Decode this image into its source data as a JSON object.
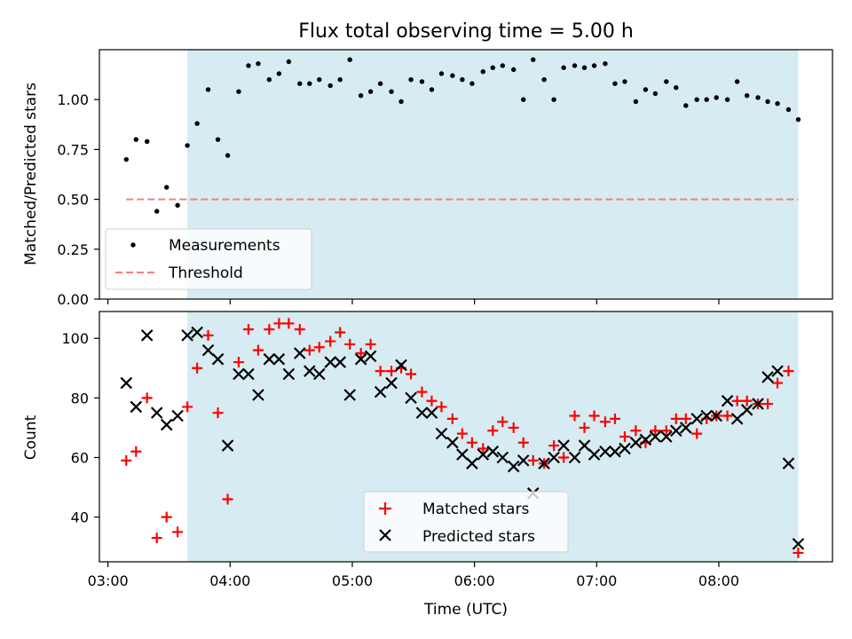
{
  "figure": {
    "title": "Flux total observing time = 5.00 h"
  },
  "chart_data": [
    {
      "type": "scatter",
      "ylabel": "Matched/Predicted stars",
      "ylim": [
        0,
        1.25
      ],
      "xlim_hours": [
        2.93,
        8.93
      ],
      "yticks": [
        "0.00",
        "0.25",
        "0.50",
        "0.75",
        "1.00"
      ],
      "grid": false,
      "shaded_region_hours": [
        3.65,
        8.65
      ],
      "threshold": {
        "name": "Threshold",
        "value": 0.5,
        "from_hours": 3.15,
        "to_hours": 8.65
      },
      "legend": {
        "placement": "lower-left",
        "entries": [
          "Measurements",
          "Threshold"
        ]
      },
      "series": [
        {
          "name": "Measurements",
          "x_hours": [
            3.15,
            3.23,
            3.32,
            3.4,
            3.48,
            3.57,
            3.65,
            3.73,
            3.82,
            3.9,
            3.98,
            4.07,
            4.15,
            4.23,
            4.32,
            4.4,
            4.48,
            4.57,
            4.65,
            4.73,
            4.82,
            4.9,
            4.98,
            5.07,
            5.15,
            5.23,
            5.32,
            5.4,
            5.48,
            5.57,
            5.65,
            5.73,
            5.82,
            5.9,
            5.98,
            6.07,
            6.15,
            6.23,
            6.32,
            6.4,
            6.48,
            6.57,
            6.65,
            6.73,
            6.82,
            6.9,
            6.98,
            7.07,
            7.15,
            7.23,
            7.32,
            7.4,
            7.48,
            7.57,
            7.65,
            7.73,
            7.82,
            7.9,
            7.98,
            8.07,
            8.15,
            8.23,
            8.32,
            8.4,
            8.48,
            8.57,
            8.65
          ],
          "y": [
            0.7,
            0.8,
            0.79,
            0.44,
            0.56,
            0.47,
            0.77,
            0.88,
            1.05,
            0.8,
            0.72,
            1.04,
            1.17,
            1.18,
            1.1,
            1.13,
            1.19,
            1.08,
            1.08,
            1.1,
            1.07,
            1.1,
            1.2,
            1.02,
            1.04,
            1.08,
            1.04,
            0.99,
            1.1,
            1.09,
            1.05,
            1.13,
            1.12,
            1.1,
            1.08,
            1.14,
            1.16,
            1.17,
            1.15,
            1.0,
            1.2,
            1.1,
            1.0,
            1.16,
            1.17,
            1.16,
            1.17,
            1.18,
            1.08,
            1.09,
            0.99,
            1.05,
            1.03,
            1.09,
            1.06,
            0.97,
            1.0,
            1.0,
            1.01,
            1.0,
            1.09,
            1.02,
            1.01,
            0.99,
            0.98,
            0.95,
            0.9
          ]
        }
      ]
    },
    {
      "type": "scatter",
      "xlabel": "Time (UTC)",
      "ylabel": "Count",
      "ylim": [
        25,
        109
      ],
      "xlim_hours": [
        2.93,
        8.93
      ],
      "yticks": [
        "40",
        "60",
        "80",
        "100"
      ],
      "xticks": [
        "03:00",
        "04:00",
        "05:00",
        "06:00",
        "07:00",
        "08:00"
      ],
      "grid": false,
      "shaded_region_hours": [
        3.65,
        8.65
      ],
      "legend": {
        "placement": "lower-center",
        "entries": [
          "Matched stars",
          "Predicted stars"
        ]
      },
      "series": [
        {
          "name": "Matched stars",
          "color": "#ff0000",
          "x_hours": [
            3.15,
            3.23,
            3.32,
            3.4,
            3.48,
            3.57,
            3.65,
            3.73,
            3.82,
            3.9,
            3.98,
            4.07,
            4.15,
            4.23,
            4.32,
            4.4,
            4.48,
            4.57,
            4.65,
            4.73,
            4.82,
            4.9,
            4.98,
            5.07,
            5.15,
            5.23,
            5.32,
            5.4,
            5.48,
            5.57,
            5.65,
            5.73,
            5.82,
            5.9,
            5.98,
            6.07,
            6.15,
            6.23,
            6.32,
            6.4,
            6.48,
            6.57,
            6.65,
            6.73,
            6.82,
            6.9,
            6.98,
            7.07,
            7.15,
            7.23,
            7.32,
            7.4,
            7.48,
            7.57,
            7.65,
            7.73,
            7.82,
            7.9,
            7.98,
            8.07,
            8.15,
            8.23,
            8.32,
            8.4,
            8.48,
            8.57,
            8.65
          ],
          "y": [
            59,
            62,
            80,
            33,
            40,
            35,
            77,
            90,
            101,
            75,
            46,
            92,
            103,
            96,
            103,
            105,
            105,
            103,
            96,
            97,
            99,
            102,
            98,
            95,
            98,
            89,
            89,
            90,
            88,
            82,
            79,
            77,
            73,
            68,
            65,
            63,
            69,
            72,
            70,
            65,
            59,
            58,
            64,
            60,
            74,
            70,
            74,
            72,
            73,
            67,
            69,
            65,
            69,
            69,
            73,
            73,
            68,
            73,
            74,
            74,
            79,
            79,
            78,
            78,
            85,
            89,
            28
          ]
        },
        {
          "name": "Predicted stars",
          "color": "#000000",
          "x_hours": [
            3.15,
            3.23,
            3.32,
            3.4,
            3.48,
            3.57,
            3.65,
            3.73,
            3.82,
            3.9,
            3.98,
            4.07,
            4.15,
            4.23,
            4.32,
            4.4,
            4.48,
            4.57,
            4.65,
            4.73,
            4.82,
            4.9,
            4.98,
            5.07,
            5.15,
            5.23,
            5.32,
            5.4,
            5.48,
            5.57,
            5.65,
            5.73,
            5.82,
            5.9,
            5.98,
            6.07,
            6.15,
            6.23,
            6.32,
            6.4,
            6.48,
            6.57,
            6.65,
            6.73,
            6.82,
            6.9,
            6.98,
            7.07,
            7.15,
            7.23,
            7.32,
            7.4,
            7.48,
            7.57,
            7.65,
            7.73,
            7.82,
            7.9,
            7.98,
            8.07,
            8.15,
            8.23,
            8.32,
            8.4,
            8.48,
            8.57,
            8.65
          ],
          "y": [
            85,
            77,
            101,
            75,
            71,
            74,
            101,
            102,
            96,
            93,
            64,
            88,
            88,
            81,
            93,
            93,
            88,
            95,
            89,
            88,
            92,
            92,
            81,
            93,
            94,
            82,
            85,
            91,
            80,
            75,
            75,
            68,
            65,
            61,
            58,
            61,
            62,
            60,
            57,
            59,
            48,
            58,
            60,
            64,
            60,
            64,
            61,
            62,
            62,
            63,
            65,
            66,
            67,
            67,
            69,
            70,
            73,
            74,
            74,
            79,
            73,
            76,
            78,
            87,
            89,
            58,
            31
          ]
        }
      ]
    }
  ]
}
